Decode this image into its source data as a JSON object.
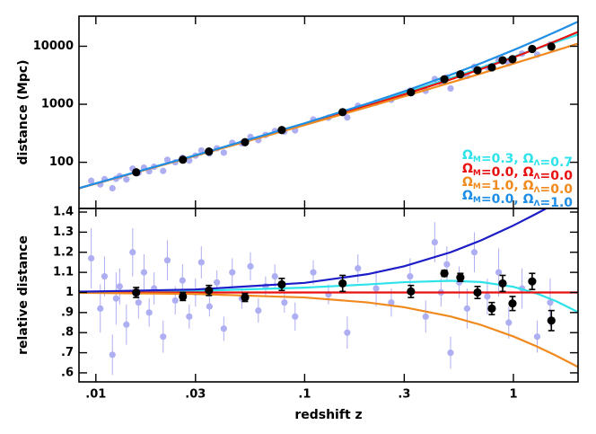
{
  "chart_data": [
    {
      "type": "scatter",
      "ylabel": "distance (Mpc)",
      "xlog": true,
      "ylog": true,
      "xlim": [
        0.0083,
        2.04
      ],
      "ylim": [
        16,
        33000
      ],
      "yticks": [
        100,
        1000,
        10000
      ],
      "legend": "lower right",
      "points": {
        "color": "#aeaef2",
        "x": [
          0.0095,
          0.0105,
          0.011,
          0.012,
          0.0125,
          0.013,
          0.014,
          0.015,
          0.016,
          0.017,
          0.018,
          0.019,
          0.021,
          0.022,
          0.024,
          0.026,
          0.028,
          0.03,
          0.032,
          0.035,
          0.038,
          0.041,
          0.045,
          0.05,
          0.055,
          0.06,
          0.065,
          0.072,
          0.08,
          0.09,
          0.11,
          0.13,
          0.16,
          0.18,
          0.22,
          0.26,
          0.32,
          0.38,
          0.42,
          0.45,
          0.48,
          0.5,
          0.55,
          0.6,
          0.65,
          0.75,
          0.85,
          0.95,
          1.1,
          1.3,
          1.5
        ],
        "values": [
          47.8,
          41.6,
          51.2,
          35.7,
          52.3,
          57.7,
          50.7,
          77.7,
          65.6,
          80.8,
          70.0,
          83.8,
          70.9,
          110.5,
          99.9,
          119.6,
          107.0,
          130.4,
          160.1,
          141.9,
          174.1,
          146.9,
          216.8,
          212.9,
          273.5,
          240.9,
          296.1,
          345.0,
          338.5,
          354.5,
          546.7,
          587.1,
          592.1,
          941.2,
          1066.8,
          1195.4,
          1717.1,
          1704.4,
          2720.8,
          2361,
          2906.1,
          1873.8,
          3153.7,
          3073.4,
          4426.4,
          4328.5,
          5706.6,
          5101.4,
          7448.6,
          7165.9,
          10680.8
        ],
        "errors": [
          7.2,
          5.0,
          5.1,
          3.6,
          6.8,
          5.2,
          5.1,
          9.3,
          5.2,
          7.3,
          4.9,
          6.7,
          5.7,
          11.1,
          7.0,
          9.6,
          6.4,
          9.1,
          12.8,
          7.1,
          10.4,
          8.8,
          15.2,
          10.6,
          19.1,
          14.5,
          14.8,
          20.7,
          16.9,
          24.8,
          32.8,
          29.4,
          47.4,
          65.9,
          96.0,
          83.7,
          154.5,
          136.4,
          272.1,
          165.3,
          261.5,
          149.9,
          252.3,
          307.3,
          442.6,
          389.6,
          684.8,
          408.1,
          744.9,
          573.3,
          1281.7
        ]
      },
      "binned": {
        "color": "#000000",
        "x": [
          0.0156,
          0.0261,
          0.0348,
          0.0518,
          0.0777,
          0.152,
          0.323,
          0.467,
          0.557,
          0.673,
          0.788,
          0.888,
          0.99,
          1.23,
          1.52
        ],
        "values": [
          67.3,
          111.0,
          153.2,
          221.9,
          359.6,
          732.0,
          1614.9,
          2701.6,
          3278.8,
          3852.4,
          4328.4,
          5739.0,
          5990.4,
          8975.8,
          9853.8
        ]
      },
      "model_x": [
        0.0083,
        0.01,
        0.03,
        0.1,
        0.2,
        0.3,
        0.5,
        0.7,
        1.0,
        1.3,
        1.6,
        2.04
      ],
      "models": [
        {
          "name": "ΩM=0.3,  ΩΛ=0.7",
          "color": "#2ee3ea",
          "values": [
            35.8,
            43.1,
            131.4,
            460.3,
            980,
            1553,
            2832,
            4258,
            6604,
            9136,
            11805,
            15914
          ]
        },
        {
          "name": "ΩM=0.0,  ΩΛ=0.0",
          "color": "#e81010",
          "values": [
            35.7,
            43.0,
            130.4,
            449.7,
            942.3,
            1477.6,
            2676.9,
            4047.4,
            6424.5,
            9187.0,
            12335,
            17649
          ]
        },
        {
          "name": "ΩM=1.0,  ΩΛ=0.0",
          "color": "#f08a1e",
          "values": [
            35.6,
            42.9,
            129.4,
            438.5,
            895.6,
            1369.1,
            2357.8,
            3393.5,
            5017.8,
            6710.8,
            8459.3,
            11105
          ]
        },
        {
          "name": "ΩM=0.0,  ΩΛ=1.0",
          "color": "#1f8ee6",
          "values": [
            35.8,
            43.3,
            132.3,
            471.1,
            1027.9,
            1670.4,
            3212.3,
            5096.8,
            8566,
            12806,
            17818,
            26561
          ]
        }
      ]
    },
    {
      "type": "scatter",
      "ylabel": "relative distance",
      "xlabel": "redshift z",
      "xlog": true,
      "ylog": false,
      "xlim": [
        0.0083,
        2.04
      ],
      "ylim": [
        0.555,
        1.418
      ],
      "xticks": [
        {
          "value": 0.01,
          "label": ".01"
        },
        {
          "value": 0.03,
          "label": ".03"
        },
        {
          "value": 0.1,
          "label": ".1"
        },
        {
          "value": 0.3,
          "label": ".3"
        },
        1
      ],
      "yticks": [
        {
          "value": 0.6,
          "label": ".6"
        },
        {
          "value": 0.7,
          "label": ".7"
        },
        {
          "value": 0.8,
          "label": ".8"
        },
        {
          "value": 0.9,
          "label": ".9"
        },
        1,
        1.1,
        1.2,
        1.3,
        1.4
      ],
      "points": {
        "color": "#aeaef2",
        "x": [
          0.0095,
          0.0105,
          0.011,
          0.012,
          0.0125,
          0.013,
          0.014,
          0.015,
          0.016,
          0.017,
          0.018,
          0.019,
          0.021,
          0.022,
          0.024,
          0.026,
          0.028,
          0.03,
          0.032,
          0.035,
          0.038,
          0.041,
          0.045,
          0.05,
          0.055,
          0.06,
          0.065,
          0.072,
          0.08,
          0.09,
          0.11,
          0.13,
          0.16,
          0.18,
          0.22,
          0.26,
          0.32,
          0.38,
          0.42,
          0.45,
          0.48,
          0.5,
          0.55,
          0.6,
          0.65,
          0.75,
          0.85,
          0.95,
          1.1,
          1.3,
          1.5
        ],
        "values": [
          1.17,
          0.92,
          1.08,
          0.69,
          0.97,
          1.03,
          0.84,
          1.2,
          0.95,
          1.1,
          0.9,
          1.02,
          0.78,
          1.16,
          0.96,
          1.06,
          0.88,
          1.0,
          1.15,
          0.93,
          1.05,
          0.82,
          1.1,
          0.97,
          1.13,
          0.91,
          1.03,
          1.08,
          0.95,
          0.88,
          1.1,
          0.99,
          0.8,
          1.12,
          1.02,
          0.95,
          1.08,
          0.88,
          1.25,
          1.0,
          1.14,
          0.7,
          1.05,
          0.92,
          1.2,
          0.98,
          1.1,
          0.85,
          1.02,
          0.78,
          0.95
        ],
        "errors": [
          0.15,
          0.12,
          0.1,
          0.1,
          0.13,
          0.09,
          0.1,
          0.12,
          0.08,
          0.09,
          0.07,
          0.08,
          0.08,
          0.1,
          0.07,
          0.08,
          0.06,
          0.07,
          0.08,
          0.05,
          0.06,
          0.06,
          0.07,
          0.05,
          0.07,
          0.06,
          0.05,
          0.06,
          0.05,
          0.07,
          0.06,
          0.05,
          0.08,
          0.07,
          0.09,
          0.07,
          0.09,
          0.08,
          0.1,
          0.07,
          0.09,
          0.08,
          0.08,
          0.1,
          0.1,
          0.09,
          0.12,
          0.08,
          0.1,
          0.08,
          0.12
        ]
      },
      "binned": {
        "color": "#000000",
        "x": [
          0.0156,
          0.0261,
          0.0348,
          0.0518,
          0.0777,
          0.152,
          0.323,
          0.467,
          0.557,
          0.673,
          0.788,
          0.888,
          0.99,
          1.23,
          1.52
        ],
        "values": [
          1.0,
          0.98,
          1.01,
          0.975,
          1.04,
          1.045,
          1.005,
          1.095,
          1.075,
          1.0,
          0.92,
          1.045,
          0.945,
          1.055,
          0.86
        ],
        "errors": [
          0.025,
          0.02,
          0.025,
          0.02,
          0.03,
          0.04,
          0.03,
          0.015,
          0.02,
          0.03,
          0.03,
          0.04,
          0.035,
          0.04,
          0.05
        ]
      },
      "model_x": [
        0.0083,
        0.01,
        0.03,
        0.1,
        0.2,
        0.3,
        0.5,
        0.7,
        1.0,
        1.3,
        1.6,
        2.04
      ],
      "models": [
        {
          "color": "#2ee3ea",
          "values": [
            1.002,
            1.003,
            1.008,
            1.024,
            1.04,
            1.051,
            1.058,
            1.052,
            1.028,
            0.994,
            0.957,
            0.902
          ]
        },
        {
          "color": "#e81010",
          "values": [
            1,
            1,
            1,
            1,
            1,
            1,
            1,
            1,
            1,
            1,
            1,
            1
          ]
        },
        {
          "color": "#f08a1e",
          "values": [
            0.998,
            0.9975,
            0.9925,
            0.9751,
            0.9505,
            0.9265,
            0.8808,
            0.8384,
            0.781,
            0.7305,
            0.6858,
            0.6292
          ]
        },
        {
          "color": "#1c1cc8",
          "values": [
            1.0041,
            1.005,
            1.0148,
            1.0476,
            1.0909,
            1.1304,
            1.2,
            1.2593,
            1.3333,
            1.3939,
            1.4444,
            1.505
          ]
        }
      ]
    }
  ]
}
